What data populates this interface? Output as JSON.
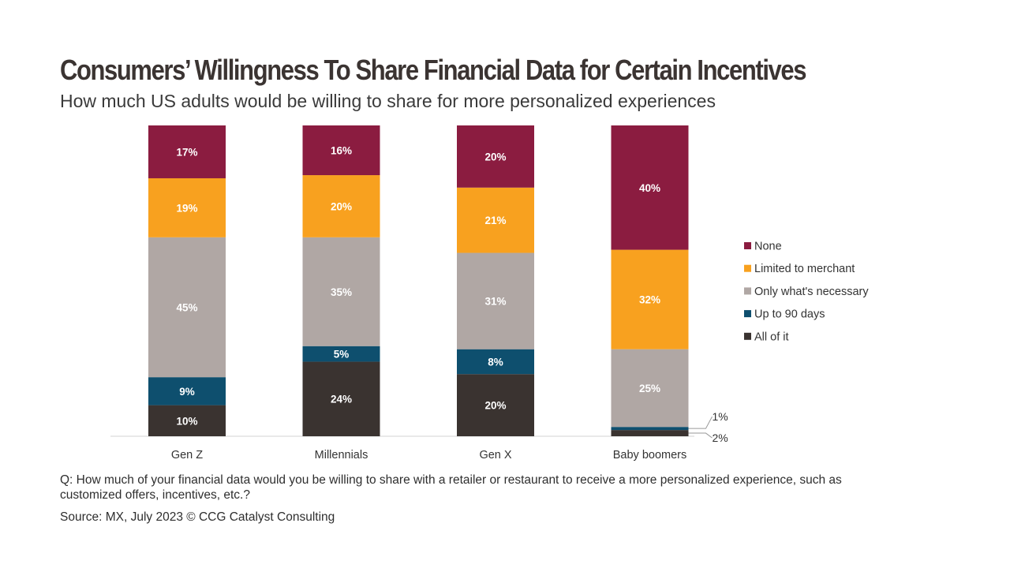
{
  "title": "Consumers’ Willingness To Share Financial Data for Certain Incentives",
  "subtitle": "How much US adults would be willing to share for more personalized experiences",
  "question": "Q: How much of your financial data would you be willing to share with a retailer or restaurant to receive a more personalized experience, such as customized offers, incentives, etc.?",
  "source": "Source: MX, July 2023 © CCG Catalyst Consulting",
  "chart_data": {
    "type": "bar",
    "stacked": true,
    "normalized_percent": true,
    "title": "Consumers’ Willingness To Share Financial Data for Certain Incentives",
    "xlabel": "",
    "ylabel": "",
    "categories": [
      "Gen Z",
      "Millennials",
      "Gen X",
      "Baby boomers"
    ],
    "series": [
      {
        "name": "All of it",
        "color": "#3a3330",
        "values": [
          10,
          24,
          20,
          2
        ],
        "labels": [
          "10%",
          "24%",
          "20%",
          "2%"
        ]
      },
      {
        "name": "Up to 90 days",
        "color": "#0e4f6e",
        "values": [
          9,
          5,
          8,
          1
        ],
        "labels": [
          "9%",
          "5%",
          "8%",
          "1%"
        ]
      },
      {
        "name": "Only what's necessary",
        "color": "#b0a7a4",
        "values": [
          45,
          35,
          31,
          25
        ],
        "labels": [
          "45%",
          "35%",
          "31%",
          "25%"
        ]
      },
      {
        "name": "Limited to merchant",
        "color": "#f8a11f",
        "values": [
          19,
          20,
          21,
          32
        ],
        "labels": [
          "19%",
          "20%",
          "21%",
          "32%"
        ]
      },
      {
        "name": "None",
        "color": "#8b1c40",
        "values": [
          17,
          16,
          20,
          40
        ],
        "labels": [
          "17%",
          "16%",
          "20%",
          "40%"
        ]
      }
    ],
    "legend_order": [
      "None",
      "Limited to merchant",
      "Only what's necessary",
      "Up to 90 days",
      "All of it"
    ],
    "legend_position": "right",
    "grid": false
  }
}
